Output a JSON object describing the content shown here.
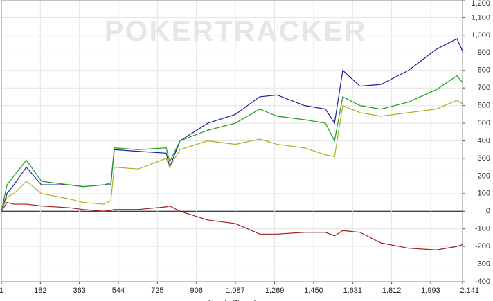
{
  "chart_data": {
    "type": "line",
    "watermark": "POKERTRACKER",
    "x_label": "Hands Played",
    "x": [
      1,
      27,
      59,
      117,
      187,
      316,
      380,
      477,
      509,
      525,
      637,
      766,
      782,
      830,
      959,
      1087,
      1200,
      1280,
      1408,
      1505,
      1547,
      1585,
      1665,
      1762,
      1890,
      2019,
      2115,
      2141
    ],
    "series": [
      {
        "color": "#1c1c9e",
        "values": [
          0,
          100,
          150,
          250,
          150,
          150,
          140,
          150,
          150,
          350,
          340,
          330,
          250,
          400,
          500,
          550,
          650,
          660,
          600,
          580,
          500,
          800,
          710,
          720,
          800,
          920,
          980,
          910
        ]
      },
      {
        "color": "#1e9e1e",
        "values": [
          0,
          150,
          200,
          290,
          170,
          150,
          140,
          150,
          160,
          360,
          350,
          360,
          280,
          400,
          460,
          500,
          580,
          540,
          520,
          500,
          400,
          650,
          600,
          580,
          620,
          690,
          770,
          730
        ]
      },
      {
        "color": "#adad1e",
        "values": [
          0,
          80,
          100,
          170,
          100,
          70,
          50,
          40,
          60,
          250,
          240,
          300,
          250,
          350,
          400,
          380,
          410,
          380,
          360,
          320,
          310,
          600,
          560,
          540,
          560,
          580,
          630,
          610
        ]
      },
      {
        "color": "#a01e1e",
        "values": [
          0,
          50,
          40,
          40,
          30,
          20,
          10,
          0,
          5,
          10,
          10,
          25,
          30,
          0,
          -50,
          -70,
          -130,
          -130,
          -120,
          -120,
          -140,
          -110,
          -120,
          -180,
          -210,
          -220,
          -200,
          -190
        ]
      }
    ],
    "xlim": [
      1,
      2141
    ],
    "xticks": [
      1,
      182,
      363,
      544,
      725,
      906,
      {
        "value": 1087,
        "label": "1,087"
      },
      {
        "value": 1269,
        "label": "1,269"
      },
      {
        "value": 1450,
        "label": "1,450"
      },
      {
        "value": 1631,
        "label": "1,631"
      },
      {
        "value": 1812,
        "label": "1,812"
      },
      {
        "value": 1993,
        "label": "1,993"
      },
      {
        "value": 2141,
        "label": "2,141"
      }
    ],
    "ylim": [
      -400,
      1200
    ],
    "yticks": [
      -400,
      -300,
      -200,
      -100,
      0,
      100,
      200,
      300,
      400,
      500,
      600,
      700,
      800,
      900,
      {
        "value": 1000,
        "label": "1,000"
      },
      {
        "value": 1100,
        "label": "1,100"
      },
      {
        "value": 1200,
        "label": "1,200"
      }
    ],
    "grid": true
  }
}
